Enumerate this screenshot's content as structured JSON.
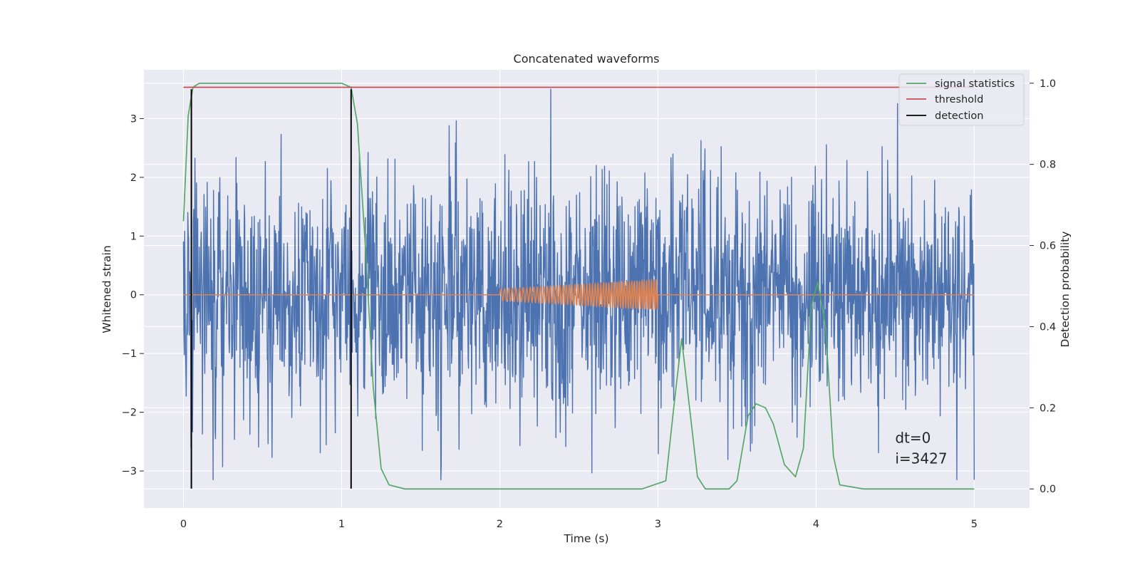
{
  "chart_data": {
    "type": "line",
    "title": "Concatenated waveforms",
    "xlabel": "Time (s)",
    "ylabel": "Whitened strain",
    "y2label": "Detection probability",
    "xlim": [
      -0.25,
      5.35
    ],
    "ylim": [
      -3.63,
      3.83
    ],
    "y2lim": [
      -0.047,
      1.033
    ],
    "xticks": [
      "0",
      "1",
      "2",
      "3",
      "4",
      "5"
    ],
    "xtick_values": [
      0,
      1,
      2,
      3,
      4,
      5
    ],
    "yticks": [
      "−3",
      "−2",
      "−1",
      "0",
      "1",
      "2",
      "3"
    ],
    "ytick_values": [
      -3,
      -2,
      -1,
      0,
      1,
      2,
      3
    ],
    "y2ticks": [
      "0.0",
      "0.2",
      "0.4",
      "0.6",
      "0.8",
      "1.0"
    ],
    "y2tick_values": [
      0.0,
      0.2,
      0.4,
      0.6,
      0.8,
      1.0
    ],
    "grid": true,
    "legend_position": "top-right",
    "background_color": "#eaeaf2",
    "noise": {
      "color": "#4c72b0",
      "x_range": [
        0,
        5
      ],
      "y_range": [
        -3.15,
        3.5
      ],
      "samples": 2000
    },
    "injection": {
      "color": "#dd8452",
      "flat_x": [
        0,
        5
      ],
      "chirp_x": [
        2,
        3
      ],
      "amplitude_start": 0.1,
      "amplitude_end": 0.25,
      "cycles": 40
    },
    "series": [
      {
        "name": "signal statistics",
        "color": "#55a868",
        "axis": "right",
        "x": [
          0,
          0.03,
          0.06,
          0.1,
          0.2,
          1.0,
          1.06,
          1.1,
          1.15,
          1.2,
          1.25,
          1.3,
          1.4,
          2.0,
          2.9,
          3.05,
          3.1,
          3.15,
          3.2,
          3.25,
          3.3,
          3.45,
          3.5,
          3.57,
          3.62,
          3.68,
          3.73,
          3.8,
          3.87,
          3.92,
          3.97,
          4.01,
          4.06,
          4.11,
          4.15,
          4.3,
          5.0
        ],
        "y": [
          0.66,
          0.92,
          0.99,
          1.0,
          1.0,
          1.0,
          0.99,
          0.9,
          0.6,
          0.25,
          0.05,
          0.01,
          0.0,
          0.0,
          0.0,
          0.02,
          0.2,
          0.37,
          0.2,
          0.03,
          0.0,
          0.0,
          0.02,
          0.18,
          0.21,
          0.2,
          0.16,
          0.06,
          0.03,
          0.1,
          0.45,
          0.51,
          0.4,
          0.08,
          0.01,
          0.0,
          0.0
        ]
      },
      {
        "name": "threshold",
        "color": "#c44e52",
        "axis": "right",
        "x": [
          0,
          5
        ],
        "y": [
          0.99,
          0.99
        ]
      },
      {
        "name": "detection",
        "color": "#000000",
        "axis": "left",
        "x_lines": [
          0.05,
          1.06
        ],
        "y_from": -3.3,
        "y_to": 3.5
      }
    ],
    "annotations": [
      {
        "text": "dt=0",
        "x": 4.5,
        "y": -2.52
      },
      {
        "text": "i=3427",
        "x": 4.5,
        "y": -2.87
      }
    ]
  }
}
